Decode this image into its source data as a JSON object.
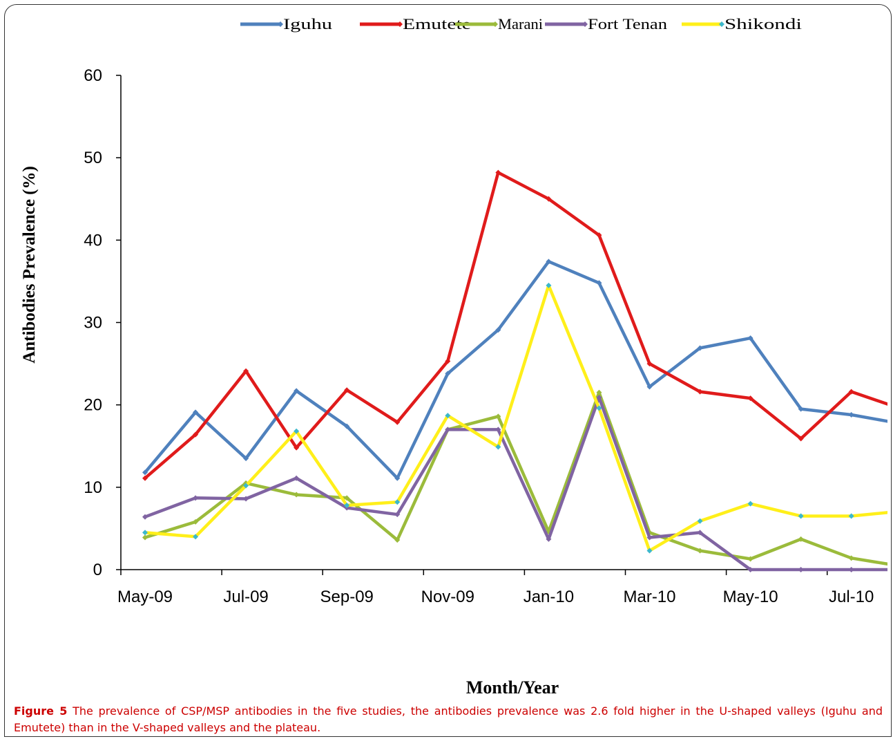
{
  "chart_data": {
    "type": "line",
    "title": "",
    "xlabel": "Month/Year",
    "ylabel": "Antibodies Prevalence  (%)",
    "ylim": [
      0,
      60
    ],
    "yticks": [
      0,
      10,
      20,
      30,
      40,
      50,
      60
    ],
    "xticks": [
      "May-09",
      "Jul-09",
      "Sep-09",
      "Nov-09",
      "Jan-10",
      "Mar-10",
      "May-10",
      "Jul-10"
    ],
    "x": [
      "2009-05",
      "2009-06",
      "2009-07",
      "2009-08",
      "2009-09",
      "2009-10",
      "2009-11",
      "2009-12",
      "2010-01",
      "2010-02",
      "2010-03",
      "2010-04",
      "2010-05",
      "2010-06",
      "2010-07",
      "2010-08"
    ],
    "grid": false,
    "legend": "top",
    "series": [
      {
        "name": "Iguhu",
        "color": "#4f81bd",
        "values": [
          11.8,
          19.1,
          13.5,
          21.7,
          17.4,
          11.1,
          23.8,
          29.1,
          37.4,
          34.8,
          22.2,
          26.9,
          28.1,
          19.5,
          18.8,
          17.7
        ]
      },
      {
        "name": "Emutete",
        "color": "#e01b1b",
        "values": [
          11.1,
          16.4,
          24.1,
          14.8,
          21.8,
          17.9,
          25.3,
          48.2,
          45.0,
          40.6,
          25.0,
          21.6,
          20.8,
          15.9,
          21.6,
          19.5
        ]
      },
      {
        "name": "Marani",
        "color": "#9bbb3b",
        "values": [
          3.9,
          5.8,
          10.5,
          9.1,
          8.7,
          3.6,
          17.0,
          18.6,
          4.6,
          21.5,
          4.5,
          2.3,
          1.3,
          3.7,
          1.4,
          0.4
        ]
      },
      {
        "name": "Fort Tenan",
        "color": "#8064a2",
        "values": [
          6.4,
          8.7,
          8.6,
          11.1,
          7.5,
          6.7,
          17.0,
          17.0,
          3.7,
          20.9,
          3.9,
          4.5,
          0.0,
          0.0,
          0.0,
          0.0
        ]
      },
      {
        "name": "Shikondi",
        "color": "#ffef1a",
        "values": [
          4.5,
          4.0,
          10.2,
          16.8,
          7.8,
          8.2,
          18.7,
          14.9,
          34.5,
          19.6,
          2.3,
          5.9,
          8.0,
          6.5,
          6.5,
          7.1
        ]
      }
    ]
  },
  "caption": {
    "label": "Figure 5",
    "text": "The prevalence of CSP/MSP antibodies in the five studies, the antibodies prevalence was 2.6 fold higher in the U-shaped valleys (Iguhu and Emutete) than in the V-shaped valleys and the plateau."
  }
}
